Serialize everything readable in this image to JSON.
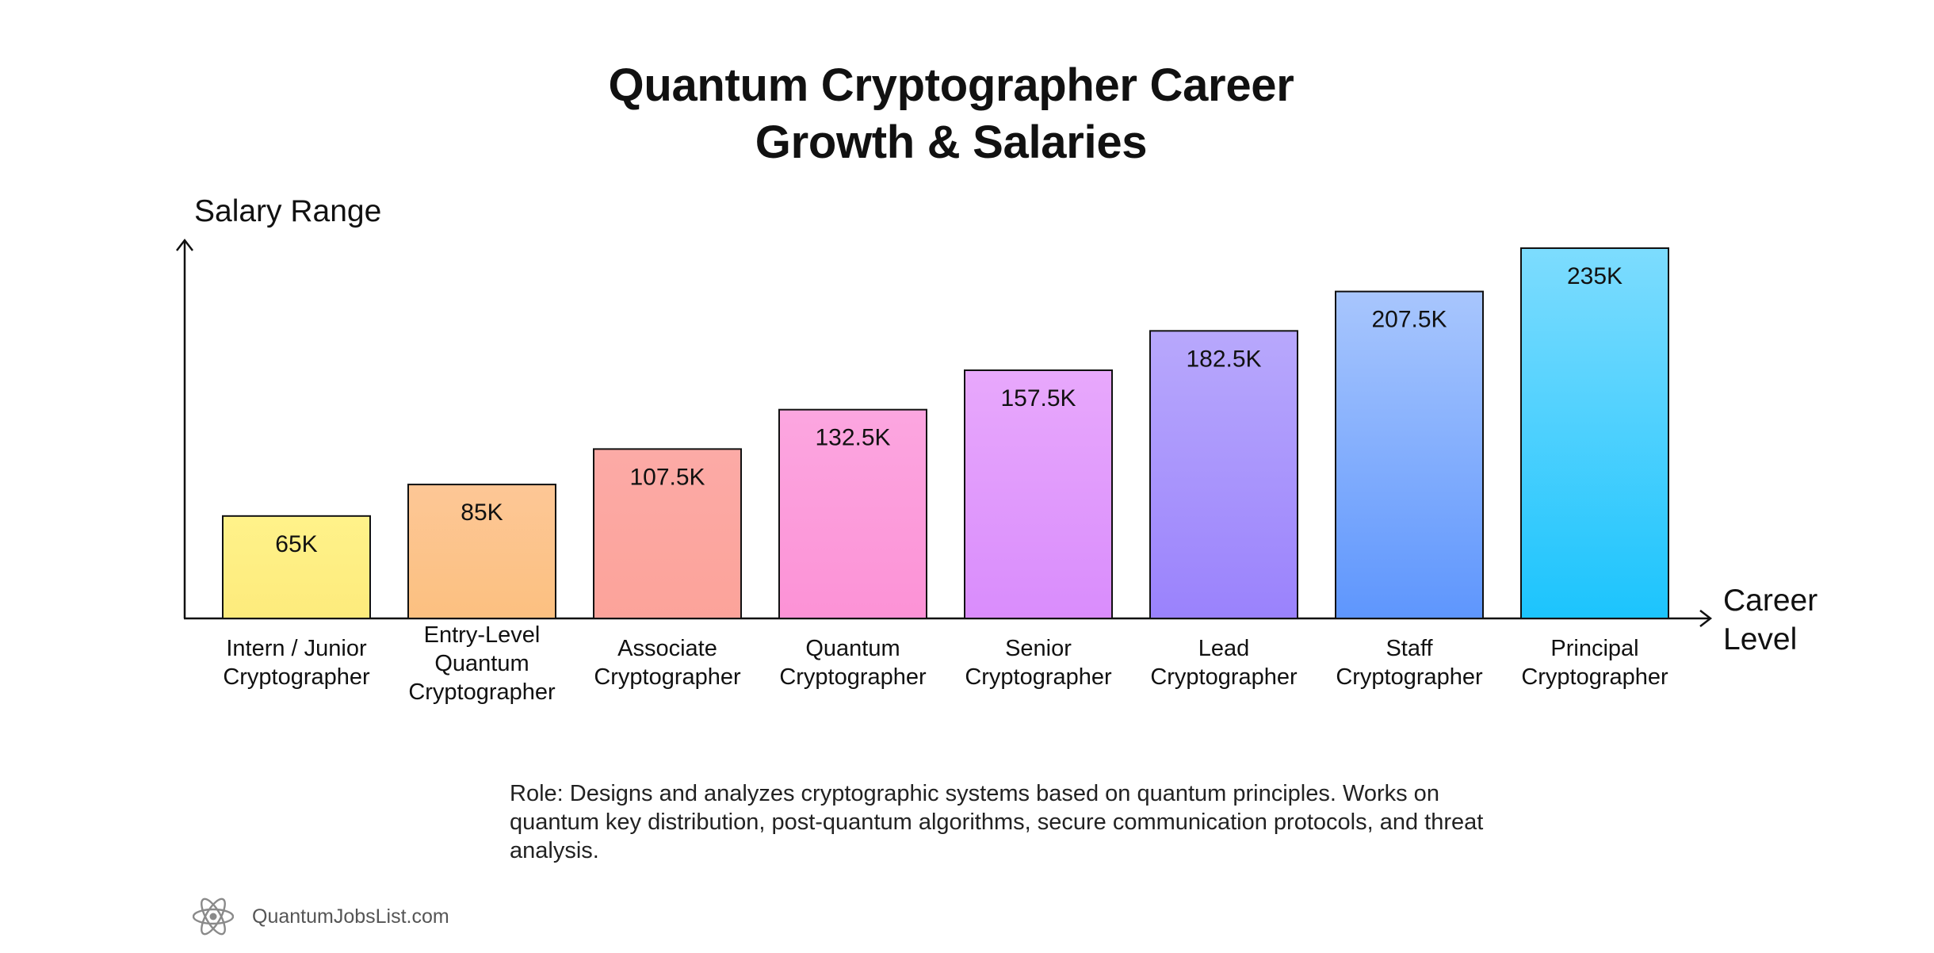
{
  "title_lines": [
    "Quantum Cryptographer Career",
    "Growth & Salaries"
  ],
  "ylabel": "Salary Range",
  "xlabel": "Career\nLevel",
  "description": "Role: Designs and analyzes cryptographic systems based on quantum principles. Works on quantum key distribution, post-quantum algorithms, secure communication protocols, and threat analysis.",
  "brand": {
    "text": "QuantumJobsList.com",
    "icon": "atom-icon"
  },
  "colors": {
    "axis": "#111111",
    "bar_outline": "#111111",
    "bars": [
      [
        "#fff28a",
        "#fdeb7c"
      ],
      [
        "#fdc796",
        "#fcc080"
      ],
      [
        "#fcaaa6",
        "#fca39a"
      ],
      [
        "#fca6e0",
        "#fc92d6"
      ],
      [
        "#e8a8fc",
        "#d98cfc"
      ],
      [
        "#b8a8fc",
        "#9a82fc"
      ],
      [
        "#a8c6fd",
        "#5e96fd"
      ],
      [
        "#7ddcfe",
        "#1cc4fd"
      ]
    ]
  },
  "chart_data": {
    "type": "bar",
    "title": "Quantum Cryptographer Career Growth & Salaries",
    "xlabel": "Career Level",
    "ylabel": "Salary Range",
    "categories": [
      [
        "Intern / Junior",
        "Cryptographer"
      ],
      [
        "Entry-Level",
        "Quantum",
        "Cryptographer"
      ],
      [
        "Associate",
        "Cryptographer"
      ],
      [
        "Quantum",
        "Cryptographer"
      ],
      [
        "Senior",
        "Cryptographer"
      ],
      [
        "Lead",
        "Cryptographer"
      ],
      [
        "Staff",
        "Cryptographer"
      ],
      [
        "Principal",
        "Cryptographer"
      ]
    ],
    "values": [
      65,
      85,
      107.5,
      132.5,
      157.5,
      182.5,
      207.5,
      235
    ],
    "value_labels": [
      "65K",
      "85K",
      "107.5K",
      "132.5K",
      "157.5K",
      "182.5K",
      "207.5K",
      "235K"
    ],
    "unit": "K",
    "ylim": [
      0,
      235
    ],
    "grid": false,
    "legend": "none"
  }
}
